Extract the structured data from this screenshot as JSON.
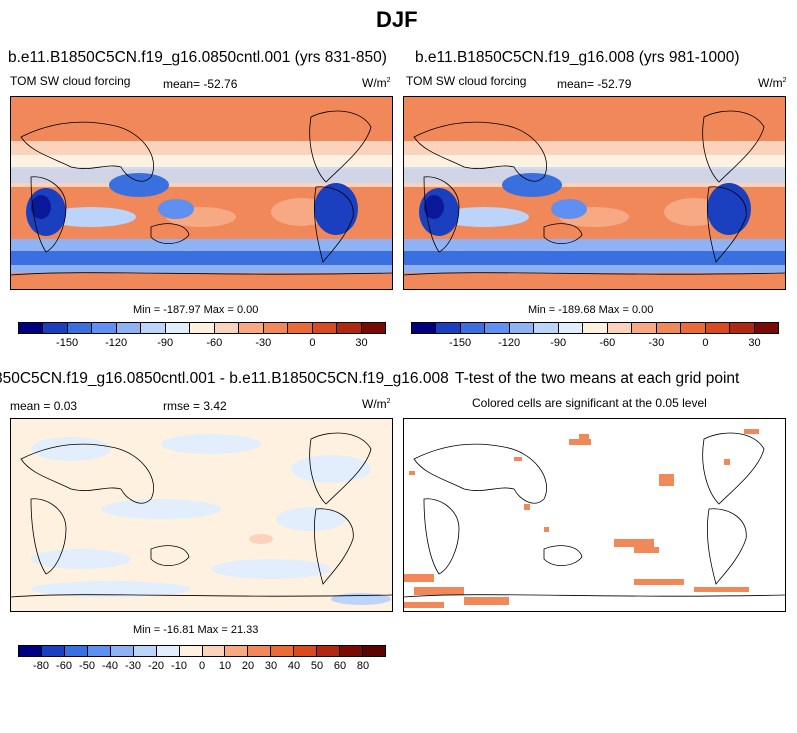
{
  "title": "DJF",
  "panel1": {
    "case": "b.e11.B1850C5CN.f19_g16.0850cntl.001 (yrs 831-850)",
    "field": "TOM SW cloud forcing",
    "mean": "mean= -52.76",
    "units": "W/m",
    "units_sup": "2",
    "minmax": "Min = -187.97  Max =   0.00"
  },
  "panel2": {
    "case": "b.e11.B1850C5CN.f19_g16.008 (yrs 981-1000)",
    "field": "TOM SW cloud forcing",
    "mean": "mean= -52.79",
    "units": "W/m",
    "units_sup": "2",
    "minmax": "Min = -189.68  Max =   0.00"
  },
  "panel3": {
    "case": "850C5CN.f19_g16.0850cntl.001 - b.e11.B1850C5CN.f19_g16.008",
    "mean": "mean =   0.03",
    "rmse": "rmse =   3.42",
    "units": "W/m",
    "units_sup": "2",
    "minmax": "Min = -16.81  Max =  21.33"
  },
  "panel4": {
    "title": "T-test of the two means at each grid point",
    "subtitle": "Colored cells are significant at the 0.05 level"
  },
  "colorbar_top": {
    "colors": [
      "#000080",
      "#1a3fbf",
      "#3a6fe0",
      "#5f8ff0",
      "#8fb2f5",
      "#bcd4fa",
      "#e3eefc",
      "#fff1e0",
      "#fbd3bd",
      "#f6a983",
      "#f08859",
      "#ea6a38",
      "#d84a20",
      "#b02810",
      "#7a0a05"
    ],
    "labels": [
      "-150",
      "-120",
      "-90",
      "-60",
      "-30",
      "0",
      "30"
    ]
  },
  "colorbar_bottom": {
    "colors": [
      "#000080",
      "#1a3fbf",
      "#3a6fe0",
      "#5f8ff0",
      "#8fb2f5",
      "#bcd4fa",
      "#e3eefc",
      "#fff1e0",
      "#fbd3bd",
      "#f6a983",
      "#f08859",
      "#ea6a38",
      "#d84a20",
      "#b02810",
      "#7a0a05",
      "#5a0500"
    ],
    "labels": [
      "-80",
      "-60",
      "-50",
      "-40",
      "-30",
      "-20",
      "-10",
      "0",
      "10",
      "20",
      "30",
      "40",
      "50",
      "60",
      "80"
    ]
  }
}
